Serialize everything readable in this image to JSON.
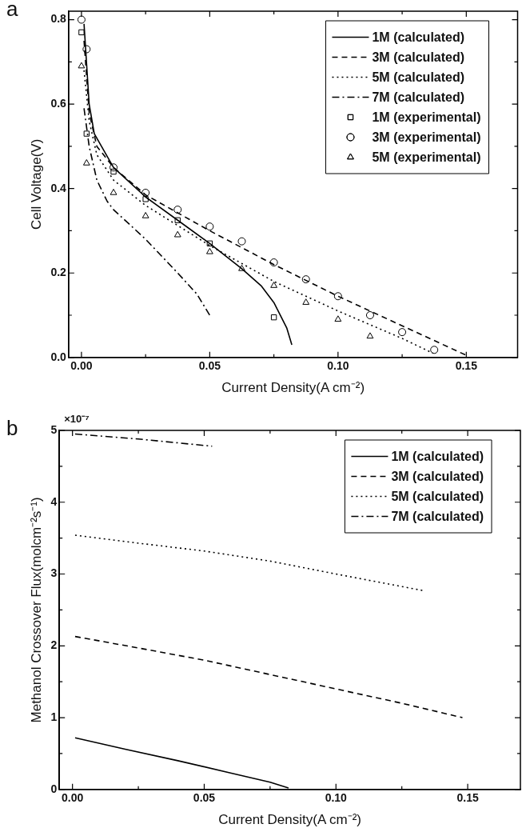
{
  "chart_data": [
    {
      "type": "line",
      "xlabel": "Current Density(A cm⁻²)",
      "ylabel": "Cell Voltage(V)",
      "annotations": [
        "a"
      ],
      "xlim": [
        -0.005,
        0.17
      ],
      "ylim": [
        0,
        0.82
      ],
      "xticks": [
        {
          "value": 0,
          "label": "0.00"
        },
        {
          "value": 0.025,
          "label": null
        },
        {
          "value": 0.05,
          "label": "0.05"
        },
        {
          "value": 0.075,
          "label": null
        },
        {
          "value": 0.1,
          "label": "0.10"
        },
        {
          "value": 0.125,
          "label": null
        },
        {
          "value": 0.15,
          "label": "0.15"
        }
      ],
      "yticks": [
        {
          "value": 0,
          "label": "0.0"
        },
        {
          "value": 0.1,
          "label": null
        },
        {
          "value": 0.2,
          "label": "0.2"
        },
        {
          "value": 0.3,
          "label": null
        },
        {
          "value": 0.4,
          "label": "0.4"
        },
        {
          "value": 0.5,
          "label": null
        },
        {
          "value": 0.6,
          "label": "0.6"
        },
        {
          "value": 0.7,
          "label": null
        },
        {
          "value": 0.8,
          "label": "0.8"
        }
      ],
      "grid": false,
      "legend": "top right",
      "series": [
        {
          "name": "1M (calculated)",
          "type": "line",
          "line_style": "solid",
          "marker": "none",
          "color": "#000000",
          "x": [
            0.001,
            0.003,
            0.005,
            0.0125,
            0.025,
            0.0375,
            0.05,
            0.0625,
            0.07,
            0.075,
            0.08,
            0.082
          ],
          "values": [
            0.79,
            0.6,
            0.53,
            0.45,
            0.38,
            0.325,
            0.27,
            0.21,
            0.17,
            0.13,
            0.07,
            0.03
          ]
        },
        {
          "name": "3M (calculated)",
          "type": "line",
          "line_style": "dashed",
          "marker": "none",
          "color": "#000000",
          "x": [
            0.001,
            0.003,
            0.006,
            0.0125,
            0.025,
            0.05,
            0.075,
            0.1,
            0.125,
            0.15
          ],
          "values": [
            0.75,
            0.58,
            0.5,
            0.45,
            0.385,
            0.3,
            0.22,
            0.145,
            0.075,
            0.005
          ]
        },
        {
          "name": "5M (calculated)",
          "type": "line",
          "line_style": "dotted",
          "marker": "none",
          "color": "#000000",
          "x": [
            0.001,
            0.003,
            0.006,
            0.0125,
            0.025,
            0.05,
            0.075,
            0.1,
            0.125,
            0.137
          ],
          "values": [
            0.68,
            0.56,
            0.48,
            0.42,
            0.36,
            0.265,
            0.18,
            0.11,
            0.045,
            0.01
          ]
        },
        {
          "name": "7M (calculated)",
          "type": "line",
          "line_style": "dashdot",
          "marker": "none",
          "color": "#000000",
          "x": [
            0.001,
            0.003,
            0.006,
            0.01,
            0.0125,
            0.025,
            0.0375,
            0.045,
            0.05
          ],
          "values": [
            0.59,
            0.5,
            0.42,
            0.37,
            0.35,
            0.28,
            0.2,
            0.15,
            0.1
          ]
        },
        {
          "name": "1M (experimental)",
          "type": "scatter",
          "marker": "square",
          "color": "#000000",
          "x": [
            0,
            0.002,
            0.0125,
            0.025,
            0.0375,
            0.05,
            0.075
          ],
          "values": [
            0.77,
            0.53,
            0.44,
            0.375,
            0.325,
            0.27,
            0.095
          ]
        },
        {
          "name": "3M (experimental)",
          "type": "scatter",
          "marker": "circle",
          "color": "#000000",
          "x": [
            0,
            0.002,
            0.0125,
            0.025,
            0.0375,
            0.05,
            0.0625,
            0.075,
            0.0875,
            0.1,
            0.1125,
            0.125,
            0.1375
          ],
          "values": [
            0.8,
            0.73,
            0.45,
            0.39,
            0.35,
            0.31,
            0.275,
            0.225,
            0.185,
            0.145,
            0.1,
            0.06,
            0.018
          ]
        },
        {
          "name": "5M (experimental)",
          "type": "scatter",
          "marker": "triangle",
          "color": "#000000",
          "x": [
            0,
            0.002,
            0.0125,
            0.025,
            0.0375,
            0.05,
            0.0625,
            0.075,
            0.0875,
            0.1,
            0.1125
          ],
          "values": [
            0.69,
            0.46,
            0.39,
            0.335,
            0.29,
            0.25,
            0.21,
            0.17,
            0.13,
            0.09,
            0.05
          ]
        }
      ]
    },
    {
      "type": "line",
      "xlabel": "Current Density(A cm⁻²)",
      "ylabel": "Methanol Crossover Flux(molcm⁻²s⁻¹)",
      "annotations": [
        "b",
        "×10⁻⁷"
      ],
      "xlim": [
        -0.005,
        0.17
      ],
      "ylim": [
        0,
        5
      ],
      "xticks": [
        {
          "value": 0,
          "label": "0.00"
        },
        {
          "value": 0.025,
          "label": null
        },
        {
          "value": 0.05,
          "label": "0.05"
        },
        {
          "value": 0.075,
          "label": null
        },
        {
          "value": 0.1,
          "label": "0.10"
        },
        {
          "value": 0.125,
          "label": null
        },
        {
          "value": 0.15,
          "label": "0.15"
        }
      ],
      "yticks": [
        0,
        {
          "value": 0.5,
          "label": null
        },
        1,
        {
          "value": 1.5,
          "label": null
        },
        2,
        {
          "value": 2.5,
          "label": null
        },
        3,
        {
          "value": 3.5,
          "label": null
        },
        4,
        {
          "value": 4.5,
          "label": null
        },
        5
      ],
      "grid": false,
      "legend": "top right",
      "series": [
        {
          "name": "1M (calculated)",
          "type": "line",
          "line_style": "solid",
          "color": "#000000",
          "x": [
            0.001,
            0.02,
            0.04,
            0.06,
            0.075,
            0.082
          ],
          "values": [
            0.72,
            0.56,
            0.4,
            0.23,
            0.1,
            0.02
          ]
        },
        {
          "name": "3M (calculated)",
          "type": "line",
          "line_style": "dashed",
          "color": "#000000",
          "x": [
            0.001,
            0.025,
            0.05,
            0.075,
            0.1,
            0.125,
            0.148
          ],
          "values": [
            2.13,
            1.97,
            1.8,
            1.6,
            1.4,
            1.2,
            1.0
          ]
        },
        {
          "name": "5M (calculated)",
          "type": "line",
          "line_style": "dotted",
          "color": "#000000",
          "x": [
            0.001,
            0.025,
            0.05,
            0.075,
            0.1,
            0.133
          ],
          "values": [
            3.54,
            3.43,
            3.32,
            3.18,
            3.0,
            2.77
          ]
        },
        {
          "name": "7M (calculated)",
          "type": "line",
          "line_style": "dashdot",
          "color": "#000000",
          "x": [
            0.001,
            0.025,
            0.053
          ],
          "values": [
            4.95,
            4.88,
            4.78
          ]
        }
      ]
    }
  ]
}
